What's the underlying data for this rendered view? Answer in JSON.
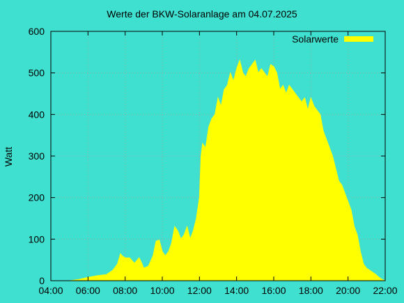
{
  "chart_data": {
    "type": "area",
    "title": "Werte der BKW-Solaranlage am 04.07.2025",
    "xlabel": "",
    "ylabel": "Watt",
    "xlim": [
      "04:00",
      "22:00"
    ],
    "ylim": [
      0,
      600
    ],
    "x_ticks": [
      "04:00",
      "06:00",
      "08:00",
      "10:00",
      "12:00",
      "14:00",
      "16:00",
      "18:00",
      "20:00",
      "22:00"
    ],
    "y_ticks": [
      "0",
      "100",
      "200",
      "300",
      "400",
      "500",
      "600"
    ],
    "grid": true,
    "legend_position": "top-right",
    "background_color": "#40E0D0",
    "series": [
      {
        "name": "Solarwerte",
        "color": "#FFFF00",
        "points": [
          [
            "05:00",
            0
          ],
          [
            "05:30",
            3
          ],
          [
            "06:00",
            8
          ],
          [
            "06:30",
            12
          ],
          [
            "07:00",
            15
          ],
          [
            "07:20",
            25
          ],
          [
            "07:35",
            40
          ],
          [
            "07:45",
            65
          ],
          [
            "07:50",
            60
          ],
          [
            "08:00",
            55
          ],
          [
            "08:15",
            55
          ],
          [
            "08:30",
            42
          ],
          [
            "08:45",
            55
          ],
          [
            "08:55",
            40
          ],
          [
            "09:00",
            30
          ],
          [
            "09:15",
            35
          ],
          [
            "09:30",
            60
          ],
          [
            "09:40",
            95
          ],
          [
            "09:50",
            98
          ],
          [
            "10:00",
            70
          ],
          [
            "10:10",
            60
          ],
          [
            "10:20",
            70
          ],
          [
            "10:30",
            90
          ],
          [
            "10:40",
            130
          ],
          [
            "10:50",
            120
          ],
          [
            "11:00",
            100
          ],
          [
            "11:10",
            110
          ],
          [
            "11:20",
            130
          ],
          [
            "11:30",
            100
          ],
          [
            "11:40",
            120
          ],
          [
            "11:50",
            150
          ],
          [
            "12:00",
            200
          ],
          [
            "12:05",
            300
          ],
          [
            "12:10",
            330
          ],
          [
            "12:20",
            320
          ],
          [
            "12:30",
            370
          ],
          [
            "12:40",
            390
          ],
          [
            "12:50",
            400
          ],
          [
            "13:00",
            440
          ],
          [
            "13:10",
            420
          ],
          [
            "13:20",
            460
          ],
          [
            "13:30",
            470
          ],
          [
            "13:40",
            500
          ],
          [
            "13:50",
            480
          ],
          [
            "14:00",
            510
          ],
          [
            "14:10",
            530
          ],
          [
            "14:20",
            500
          ],
          [
            "14:30",
            490
          ],
          [
            "14:40",
            510
          ],
          [
            "14:50",
            520
          ],
          [
            "15:00",
            530
          ],
          [
            "15:10",
            500
          ],
          [
            "15:20",
            510
          ],
          [
            "15:30",
            500
          ],
          [
            "15:40",
            490
          ],
          [
            "15:50",
            520
          ],
          [
            "16:00",
            515
          ],
          [
            "16:10",
            500
          ],
          [
            "16:20",
            460
          ],
          [
            "16:30",
            470
          ],
          [
            "16:40",
            450
          ],
          [
            "16:50",
            470
          ],
          [
            "17:00",
            460
          ],
          [
            "17:10",
            450
          ],
          [
            "17:20",
            440
          ],
          [
            "17:30",
            430
          ],
          [
            "17:40",
            440
          ],
          [
            "17:50",
            410
          ],
          [
            "18:00",
            440
          ],
          [
            "18:10",
            420
          ],
          [
            "18:20",
            410
          ],
          [
            "18:30",
            400
          ],
          [
            "18:40",
            360
          ],
          [
            "18:50",
            340
          ],
          [
            "19:00",
            320
          ],
          [
            "19:10",
            300
          ],
          [
            "19:20",
            270
          ],
          [
            "19:30",
            240
          ],
          [
            "19:40",
            230
          ],
          [
            "19:50",
            210
          ],
          [
            "20:00",
            190
          ],
          [
            "20:10",
            170
          ],
          [
            "20:20",
            130
          ],
          [
            "20:30",
            110
          ],
          [
            "20:40",
            70
          ],
          [
            "20:50",
            40
          ],
          [
            "21:00",
            30
          ],
          [
            "21:10",
            25
          ],
          [
            "21:20",
            20
          ],
          [
            "21:30",
            15
          ],
          [
            "21:40",
            8
          ],
          [
            "21:50",
            3
          ],
          [
            "22:00",
            0
          ]
        ]
      }
    ]
  }
}
